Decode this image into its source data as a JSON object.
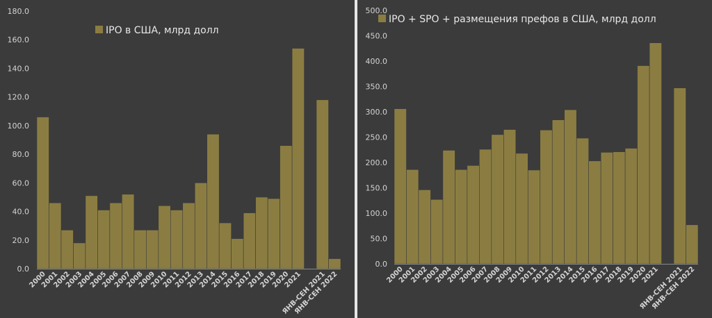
{
  "chart_data": [
    {
      "type": "bar",
      "legend": "IPO в США, млрд долл",
      "categories": [
        "2000",
        "2001",
        "2002",
        "2003",
        "2004",
        "2005",
        "2006",
        "2007",
        "2008",
        "2009",
        "2010",
        "2011",
        "2012",
        "2013",
        "2014",
        "2015",
        "2016",
        "2017",
        "2018",
        "2019",
        "2020",
        "2021",
        "",
        "ЯНВ-СЕН 2021",
        "ЯНВ-СЕН 2022"
      ],
      "values": [
        106,
        46,
        27,
        18,
        51,
        41,
        46,
        52,
        27,
        27,
        44,
        41,
        46,
        60,
        94,
        32,
        21,
        39,
        50,
        49,
        86,
        154,
        0,
        118,
        7
      ],
      "ylim": [
        0,
        180
      ],
      "yticks": [
        "0.0",
        "20.0",
        "40.0",
        "60.0",
        "80.0",
        "100.0",
        "120.0",
        "140.0",
        "160.0",
        "180.0"
      ],
      "bar_color": "#8b7d42",
      "legend_placement": "top-center",
      "grid": false
    },
    {
      "type": "bar",
      "legend": "IPO + SPO + размещения префов в США, млрд долл",
      "categories": [
        "2000",
        "2001",
        "2002",
        "2003",
        "2004",
        "2005",
        "2006",
        "2007",
        "2008",
        "2009",
        "2010",
        "2011",
        "2012",
        "2013",
        "2014",
        "2015",
        "2016",
        "2017",
        "2018",
        "2019",
        "2020",
        "2021",
        "",
        "ЯНВ-СЕН 2021",
        "ЯНВ-СЕН 2022"
      ],
      "values": [
        306,
        186,
        146,
        127,
        224,
        186,
        194,
        226,
        255,
        265,
        218,
        185,
        264,
        284,
        304,
        248,
        203,
        220,
        221,
        228,
        391,
        436,
        0,
        347,
        77
      ],
      "ylim": [
        0,
        500
      ],
      "yticks": [
        "0.0",
        "50.0",
        "100.0",
        "150.0",
        "200.0",
        "250.0",
        "300.0",
        "350.0",
        "400.0",
        "450.0",
        "500.0"
      ],
      "bar_color": "#8b7d42",
      "legend_placement": "top-center",
      "grid": false
    }
  ]
}
